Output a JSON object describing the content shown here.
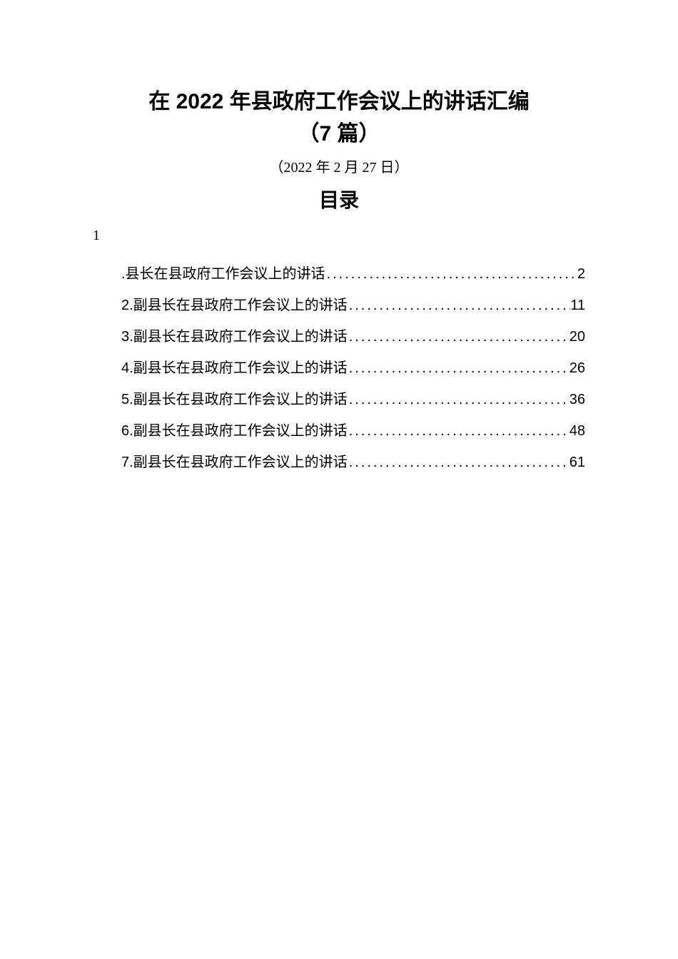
{
  "title": {
    "line1": "在 2022 年县政府工作会议上的讲话汇编",
    "line2": "（7 篇）"
  },
  "date": "（2022 年 2 月 27 日）",
  "toc_heading": "目录",
  "page_num_top": "1",
  "toc_items": [
    {
      "label": ".县长在县政府工作会议上的讲话",
      "page": "2"
    },
    {
      "label": "2.副县长在县政府工作会议上的讲话",
      "page": "11"
    },
    {
      "label": "3.副县长在县政府工作会议上的讲话",
      "page": "20"
    },
    {
      "label": "4.副县长在县政府工作会议上的讲话",
      "page": "26"
    },
    {
      "label": "5.副县长在县政府工作会议上的讲话",
      "page": "36"
    },
    {
      "label": "6.副县长在县政府工作会议上的讲话",
      "page": "48"
    },
    {
      "label": "7.副县长在县政府工作会议上的讲话",
      "page": "61"
    }
  ],
  "colors": {
    "background": "#ffffff",
    "text": "#000000"
  },
  "typography": {
    "title_fontsize": 30,
    "title_weight": "bold",
    "date_fontsize": 20,
    "toc_heading_fontsize": 28,
    "toc_item_fontsize": 20,
    "toc_line_height": 2.2
  }
}
